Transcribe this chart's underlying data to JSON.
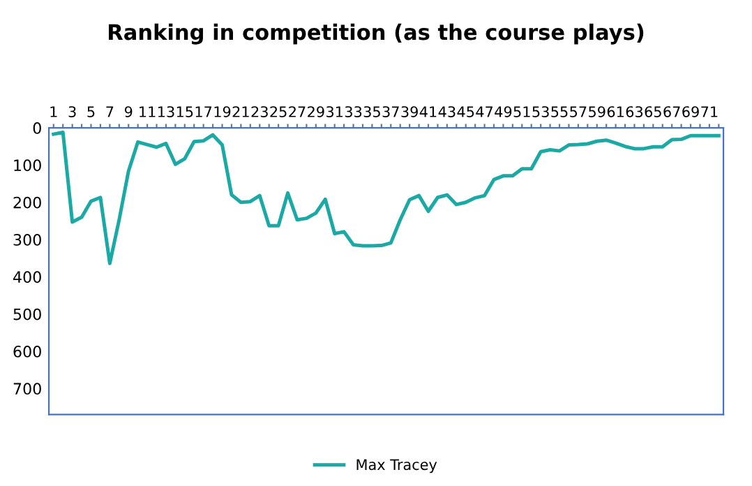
{
  "chart_data": {
    "type": "line",
    "title": "Ranking in competition (as the course plays)",
    "categories": [
      "1",
      null,
      "3",
      null,
      "5",
      null,
      "7",
      null,
      "9",
      null,
      "11",
      null,
      "13",
      null,
      "15",
      null,
      "17",
      null,
      "19",
      null,
      "21",
      null,
      "23",
      null,
      "25",
      null,
      "27",
      null,
      "29",
      null,
      "31",
      null,
      "33",
      null,
      "35",
      null,
      "37",
      null,
      "39",
      null,
      "41",
      null,
      "43",
      null,
      "45",
      null,
      "47",
      null,
      "49",
      null,
      "51",
      null,
      "53",
      null,
      "55",
      null,
      "57",
      null,
      "59",
      null,
      "61",
      null,
      "63",
      null,
      "65",
      null,
      "67",
      null,
      "69",
      null,
      "71",
      null
    ],
    "series": [
      {
        "name": "Max Tracey",
        "color": "#1aa9a4",
        "values": [
          17,
          12,
          253,
          240,
          197,
          187,
          364,
          247,
          116,
          38,
          45,
          52,
          42,
          98,
          83,
          37,
          35,
          19,
          46,
          180,
          200,
          198,
          182,
          263,
          263,
          175,
          247,
          243,
          229,
          192,
          284,
          279,
          314,
          317,
          317,
          316,
          309,
          247,
          193,
          182,
          224,
          187,
          180,
          206,
          200,
          188,
          182,
          139,
          129,
          129,
          110,
          110,
          64,
          59,
          62,
          46,
          45,
          43,
          36,
          33,
          41,
          50,
          56,
          56,
          51,
          51,
          32,
          31,
          21,
          21,
          21,
          21
        ]
      }
    ],
    "ylim": [
      770,
      0
    ],
    "yticks": [
      0,
      100,
      200,
      300,
      400,
      500,
      600,
      700
    ],
    "grid": false,
    "legend": "bottom",
    "marker": "none",
    "line_style": "solid"
  }
}
